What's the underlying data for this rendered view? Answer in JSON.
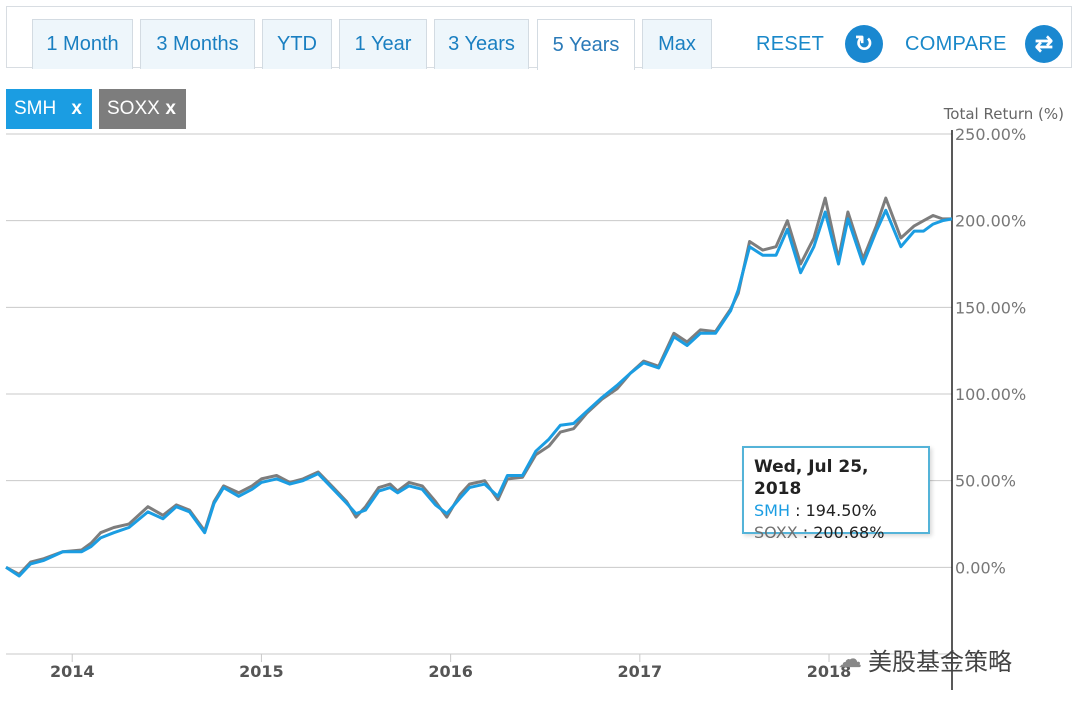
{
  "tabs": [
    "1 Month",
    "3 Months",
    "YTD",
    "1 Year",
    "3 Years",
    "5 Years",
    "Max"
  ],
  "active_tab": "5 Years",
  "reset_label": "RESET",
  "compare_label": "COMPARE",
  "chips": [
    {
      "label": "SMH",
      "close": "x",
      "color": "#1b9de2"
    },
    {
      "label": "SOXX",
      "close": "x",
      "color": "#7d7d7d"
    }
  ],
  "tooltip": {
    "date": "Wed, Jul 25, 2018",
    "s1_name": "SMH",
    "s1_value": "194.50%",
    "s2_name": "SOXX",
    "s2_value": "200.68%"
  },
  "watermark": "美股基金策略",
  "chart_data": {
    "type": "line",
    "title": "",
    "ylabel": "Total Return (%)",
    "ylim": [
      -50,
      250
    ],
    "yticks": [
      "250.00%",
      "200.00%",
      "150.00%",
      "100.00%",
      "50.00%",
      "0.00%"
    ],
    "ytick_values": [
      250,
      200,
      150,
      100,
      50,
      0
    ],
    "xticks": [
      "2014",
      "2015",
      "2016",
      "2017",
      "2018"
    ],
    "xtick_values": [
      2014.0,
      2015.0,
      2016.0,
      2017.0,
      2018.0
    ],
    "xlim": [
      2013.65,
      2018.65
    ],
    "series": [
      {
        "name": "SMH",
        "color": "#1b9de2",
        "x": [
          2013.65,
          2013.72,
          2013.78,
          2013.85,
          2013.95,
          2014.05,
          2014.1,
          2014.15,
          2014.22,
          2014.3,
          2014.4,
          2014.48,
          2014.55,
          2014.62,
          2014.7,
          2014.75,
          2014.8,
          2014.88,
          2014.95,
          2015.0,
          2015.08,
          2015.15,
          2015.22,
          2015.3,
          2015.38,
          2015.45,
          2015.5,
          2015.55,
          2015.62,
          2015.68,
          2015.72,
          2015.78,
          2015.85,
          2015.92,
          2015.98,
          2016.05,
          2016.1,
          2016.18,
          2016.25,
          2016.3,
          2016.38,
          2016.45,
          2016.52,
          2016.58,
          2016.65,
          2016.72,
          2016.8,
          2016.88,
          2016.95,
          2017.02,
          2017.1,
          2017.18,
          2017.25,
          2017.32,
          2017.4,
          2017.48,
          2017.52,
          2017.58,
          2017.65,
          2017.72,
          2017.78,
          2017.85,
          2017.92,
          2017.98,
          2018.05,
          2018.1,
          2018.18,
          2018.25,
          2018.3,
          2018.38,
          2018.45,
          2018.5,
          2018.55,
          2018.6,
          2018.65
        ],
        "values": [
          0,
          -5,
          2,
          4,
          9,
          9,
          12,
          17,
          20,
          23,
          32,
          28,
          35,
          32,
          20,
          37,
          46,
          41,
          45,
          49,
          51,
          48,
          50,
          54,
          45,
          37,
          31,
          33,
          44,
          46,
          43,
          47,
          45,
          36,
          31,
          40,
          46,
          48,
          41,
          53,
          53,
          67,
          74,
          82,
          83,
          90,
          98,
          105,
          112,
          118,
          115,
          133,
          128,
          135,
          135,
          148,
          160,
          185,
          180,
          180,
          195,
          170,
          185,
          205,
          175,
          201,
          175,
          194,
          206,
          185,
          194,
          194,
          198,
          200,
          201
        ]
      },
      {
        "name": "SOXX",
        "color": "#7d7d7d",
        "x": [
          2013.65,
          2013.72,
          2013.78,
          2013.85,
          2013.95,
          2014.05,
          2014.1,
          2014.15,
          2014.22,
          2014.3,
          2014.4,
          2014.48,
          2014.55,
          2014.62,
          2014.7,
          2014.75,
          2014.8,
          2014.88,
          2014.95,
          2015.0,
          2015.08,
          2015.15,
          2015.22,
          2015.3,
          2015.38,
          2015.45,
          2015.5,
          2015.55,
          2015.62,
          2015.68,
          2015.72,
          2015.78,
          2015.85,
          2015.92,
          2015.98,
          2016.05,
          2016.1,
          2016.18,
          2016.25,
          2016.3,
          2016.38,
          2016.45,
          2016.52,
          2016.58,
          2016.65,
          2016.72,
          2016.8,
          2016.88,
          2016.95,
          2017.02,
          2017.1,
          2017.18,
          2017.25,
          2017.32,
          2017.4,
          2017.48,
          2017.52,
          2017.58,
          2017.65,
          2017.72,
          2017.78,
          2017.85,
          2017.92,
          2017.98,
          2018.05,
          2018.1,
          2018.18,
          2018.25,
          2018.3,
          2018.38,
          2018.45,
          2018.5,
          2018.55,
          2018.6,
          2018.65
        ],
        "values": [
          0,
          -4,
          3,
          5,
          9,
          10,
          14,
          20,
          23,
          25,
          35,
          30,
          36,
          33,
          21,
          38,
          47,
          43,
          47,
          51,
          53,
          49,
          51,
          55,
          46,
          38,
          29,
          35,
          46,
          48,
          44,
          49,
          47,
          38,
          29,
          42,
          48,
          50,
          39,
          51,
          52,
          65,
          70,
          78,
          80,
          89,
          97,
          103,
          112,
          119,
          116,
          135,
          130,
          137,
          136,
          149,
          158,
          188,
          183,
          185,
          200,
          175,
          190,
          213,
          178,
          205,
          178,
          197,
          213,
          190,
          197,
          200,
          203,
          201,
          201
        ]
      }
    ]
  }
}
